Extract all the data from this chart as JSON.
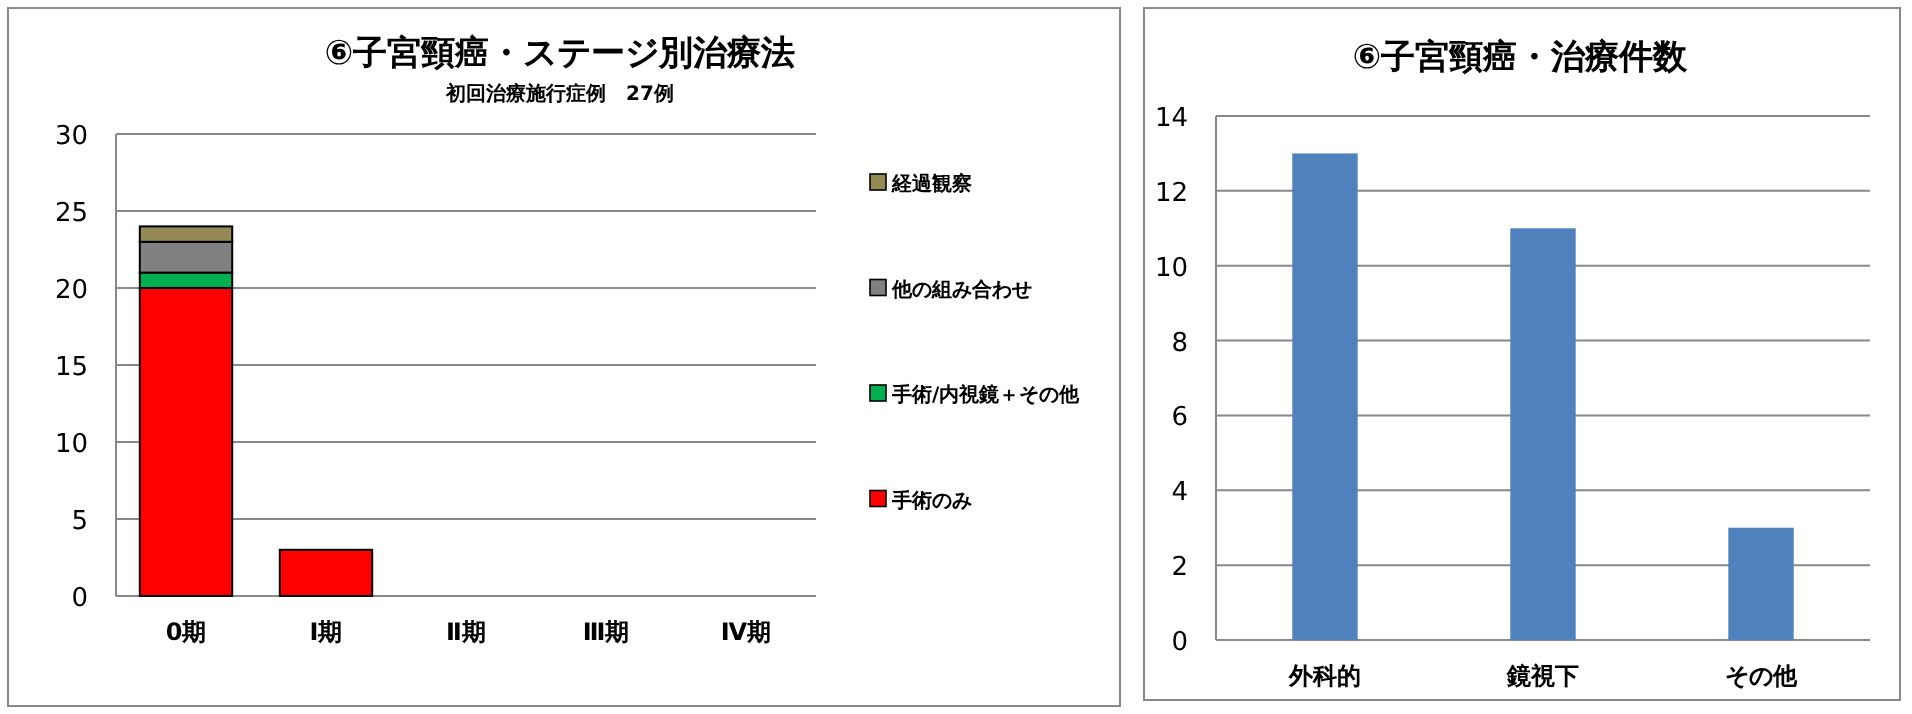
{
  "chart_data": [
    {
      "type": "bar",
      "title": "⑥子宮頸癌・ステージ別治療法",
      "subtitle": "初回治療施行症例　27例",
      "categories": [
        "0期",
        "Ⅰ期",
        "Ⅱ期",
        "Ⅲ期",
        "Ⅳ期"
      ],
      "stacked": true,
      "series": [
        {
          "name": "手術のみ",
          "color": "#ff0000",
          "values": [
            20,
            3,
            0,
            0,
            0
          ]
        },
        {
          "name": "手術/内視鏡＋その他",
          "color": "#00b050",
          "values": [
            1,
            0,
            0,
            0,
            0
          ]
        },
        {
          "name": "他の組み合わせ",
          "color": "#808080",
          "values": [
            2,
            0,
            0,
            0,
            0
          ]
        },
        {
          "name": "経過観察",
          "color": "#948a54",
          "values": [
            1,
            0,
            0,
            0,
            0
          ]
        }
      ],
      "ylim": [
        0,
        30
      ],
      "yticks": [
        0,
        5,
        10,
        15,
        20,
        25,
        30
      ],
      "grid": "y",
      "legend": "right"
    },
    {
      "type": "bar",
      "title": "⑥子宮頸癌・治療件数",
      "categories": [
        "外科的",
        "鏡視下",
        "その他"
      ],
      "series": [
        {
          "color": "#4f81bd",
          "values": [
            13,
            11,
            3
          ]
        }
      ],
      "ylim": [
        0,
        14
      ],
      "yticks": [
        0,
        2,
        4,
        6,
        8,
        10,
        12,
        14
      ],
      "grid": "y"
    }
  ]
}
